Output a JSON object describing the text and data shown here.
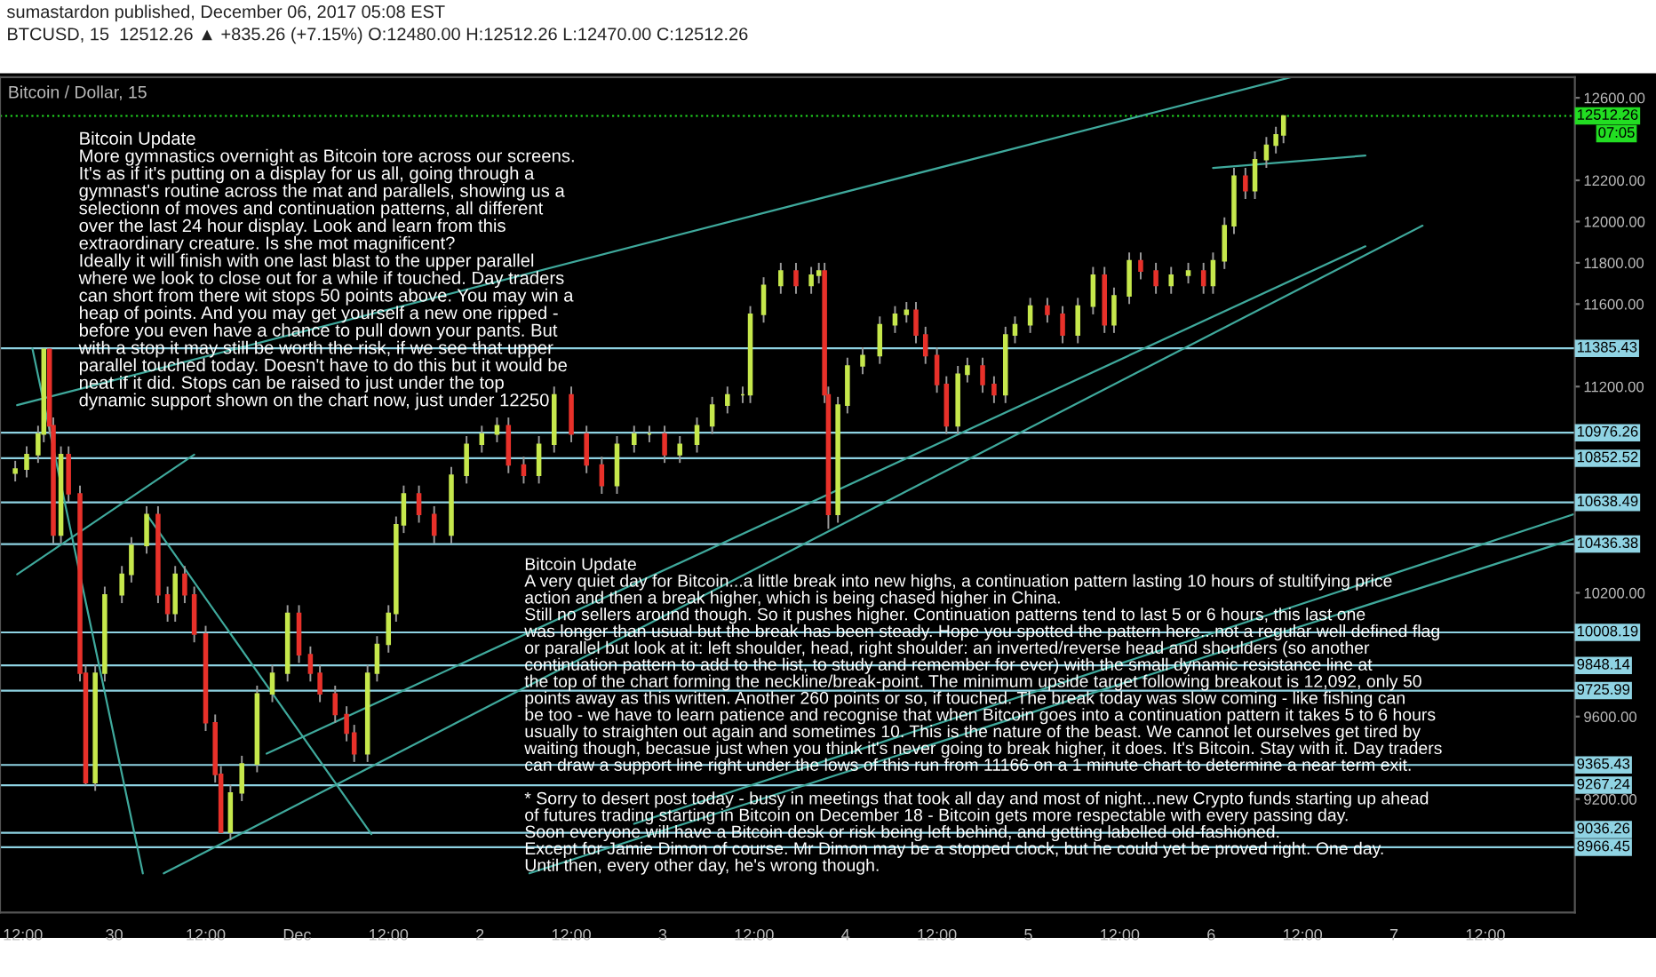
{
  "chart_data": {
    "type": "candlestick",
    "title": "Bitcoin / Dollar, 15",
    "subtitle": "sumastardon published, December 06, 2017 05:08 EST\nBTCUSD, 15  12512.26 ▲ +835.26 (+7.15%) O:12480.00 H:12512.26 L:12470.00 C:12512.26",
    "x": [
      "2017-11-29T11:00",
      "2017-11-29T12:30",
      "2017-11-29T14:00",
      "2017-11-29T14:45",
      "2017-11-29T15:30",
      "2017-11-29T16:00",
      "2017-11-29T17:00",
      "2017-11-29T18:00",
      "2017-11-29T19:30",
      "2017-11-29T20:15",
      "2017-11-29T21:30",
      "2017-11-29T22:45",
      "2017-11-30T01:00",
      "2017-11-30T02:15",
      "2017-11-30T04:15",
      "2017-11-30T05:45",
      "2017-11-30T07:00",
      "2017-11-30T08:00",
      "2017-11-30T09:15",
      "2017-11-30T10:30",
      "2017-11-30T12:00",
      "2017-11-30T13:15",
      "2017-11-30T14:00",
      "2017-11-30T15:15",
      "2017-11-30T16:45",
      "2017-11-30T18:45",
      "2017-11-30T20:45",
      "2017-11-30T22:45",
      "2017-12-01T00:15",
      "2017-12-01T01:45",
      "2017-12-01T03:00",
      "2017-12-01T05:00",
      "2017-12-01T06:30",
      "2017-12-01T07:30",
      "2017-12-01T09:15",
      "2017-12-01T10:30",
      "2017-12-01T12:00",
      "2017-12-01T13:00",
      "2017-12-01T14:00",
      "2017-12-01T16:00",
      "2017-12-01T18:00",
      "2017-12-01T20:15",
      "2017-12-01T22:15",
      "2017-12-02T00:15",
      "2017-12-02T02:15",
      "2017-12-02T03:45",
      "2017-12-02T05:45",
      "2017-12-02T07:45",
      "2017-12-02T09:45",
      "2017-12-02T12:00",
      "2017-12-02T14:00",
      "2017-12-02T16:00",
      "2017-12-02T18:00",
      "2017-12-02T20:15",
      "2017-12-02T22:15",
      "2017-12-03T00:15",
      "2017-12-03T02:15",
      "2017-12-03T04:30",
      "2017-12-03T06:30",
      "2017-12-03T08:30",
      "2017-12-03T10:30",
      "2017-12-03T11:30",
      "2017-12-03T13:15",
      "2017-12-03T15:30",
      "2017-12-03T17:30",
      "2017-12-03T19:30",
      "2017-12-03T20:30",
      "2017-12-03T21:15",
      "2017-12-03T21:45",
      "2017-12-03T23:00",
      "2017-12-04T00:15",
      "2017-12-04T02:15",
      "2017-12-04T04:30",
      "2017-12-04T06:30",
      "2017-12-04T08:00",
      "2017-12-04T09:15",
      "2017-12-04T10:30",
      "2017-12-04T12:00",
      "2017-12-04T13:15",
      "2017-12-04T14:45",
      "2017-12-04T16:00",
      "2017-12-04T18:00",
      "2017-12-04T19:30",
      "2017-12-04T21:00",
      "2017-12-04T22:15",
      "2017-12-05T00:15",
      "2017-12-05T02:30",
      "2017-12-05T04:30",
      "2017-12-05T06:30",
      "2017-12-05T08:30",
      "2017-12-05T10:00",
      "2017-12-05T11:15",
      "2017-12-05T13:15",
      "2017-12-05T14:45",
      "2017-12-05T16:45",
      "2017-12-05T18:45",
      "2017-12-05T21:00",
      "2017-12-05T23:00",
      "2017-12-06T00:15",
      "2017-12-06T01:45",
      "2017-12-06T03:00",
      "2017-12-06T04:30",
      "2017-12-06T05:45",
      "2017-12-06T07:15",
      "2017-12-06T08:30",
      "2017-12-06T09:30"
    ],
    "ohlc": [
      [
        10780,
        10840,
        10740,
        10800
      ],
      [
        10800,
        10910,
        10760,
        10870
      ],
      [
        10870,
        11010,
        10830,
        10970
      ],
      [
        10970,
        11385,
        10930,
        11380
      ],
      [
        11380,
        11385,
        10970,
        11010
      ],
      [
        11010,
        11050,
        10440,
        10480
      ],
      [
        10480,
        10910,
        10440,
        10870
      ],
      [
        10870,
        10910,
        10640,
        10680
      ],
      [
        10680,
        10720,
        9770,
        9810
      ],
      [
        9810,
        9850,
        9267,
        9280
      ],
      [
        9280,
        9850,
        9240,
        9810
      ],
      [
        9810,
        10230,
        9770,
        10190
      ],
      [
        10190,
        10330,
        10150,
        10290
      ],
      [
        10290,
        10470,
        10250,
        10430
      ],
      [
        10430,
        10620,
        10390,
        10580
      ],
      [
        10580,
        10620,
        10150,
        10190
      ],
      [
        10190,
        10230,
        10060,
        10100
      ],
      [
        10100,
        10330,
        10060,
        10290
      ],
      [
        10290,
        10330,
        10150,
        10190
      ],
      [
        10190,
        10230,
        9960,
        10000
      ],
      [
        10000,
        10040,
        9530,
        9570
      ],
      [
        9570,
        9610,
        9280,
        9320
      ],
      [
        9320,
        9360,
        9036,
        9040
      ],
      [
        9040,
        9270,
        9000,
        9230
      ],
      [
        9230,
        9410,
        9190,
        9370
      ],
      [
        9370,
        9750,
        9330,
        9710
      ],
      [
        9710,
        9850,
        9670,
        9810
      ],
      [
        9810,
        10140,
        9770,
        10100
      ],
      [
        10100,
        10140,
        9860,
        9900
      ],
      [
        9900,
        9940,
        9770,
        9810
      ],
      [
        9810,
        9850,
        9670,
        9710
      ],
      [
        9710,
        9750,
        9570,
        9610
      ],
      [
        9610,
        9650,
        9480,
        9520
      ],
      [
        9520,
        9560,
        9380,
        9420
      ],
      [
        9420,
        9850,
        9380,
        9810
      ],
      [
        9810,
        9990,
        9770,
        9950
      ],
      [
        9950,
        10140,
        9910,
        10100
      ],
      [
        10100,
        10570,
        10060,
        10530
      ],
      [
        10530,
        10720,
        10490,
        10680
      ],
      [
        10680,
        10720,
        10540,
        10580
      ],
      [
        10580,
        10620,
        10440,
        10480
      ],
      [
        10480,
        10810,
        10440,
        10770
      ],
      [
        10770,
        10960,
        10730,
        10920
      ],
      [
        10920,
        11010,
        10880,
        10970
      ],
      [
        10970,
        11050,
        10930,
        11010
      ],
      [
        11010,
        11050,
        10780,
        10820
      ],
      [
        10820,
        10860,
        10730,
        10770
      ],
      [
        10770,
        10960,
        10730,
        10920
      ],
      [
        10920,
        11200,
        10880,
        11160
      ],
      [
        11160,
        11200,
        10930,
        10970
      ],
      [
        10970,
        11010,
        10780,
        10820
      ],
      [
        10820,
        10860,
        10680,
        10720
      ],
      [
        10720,
        10960,
        10680,
        10920
      ],
      [
        10920,
        11010,
        10880,
        10970
      ],
      [
        10970,
        11010,
        10930,
        10970
      ],
      [
        10970,
        11010,
        10830,
        10870
      ],
      [
        10870,
        10960,
        10830,
        10920
      ],
      [
        10920,
        11050,
        10880,
        11010
      ],
      [
        11010,
        11150,
        10970,
        11110
      ],
      [
        11110,
        11200,
        11070,
        11160
      ],
      [
        11160,
        11200,
        11120,
        11160
      ],
      [
        11160,
        11590,
        11120,
        11550
      ],
      [
        11550,
        11730,
        11510,
        11690
      ],
      [
        11690,
        11800,
        11650,
        11760
      ],
      [
        11760,
        11800,
        11650,
        11690
      ],
      [
        11690,
        11780,
        11650,
        11740
      ],
      [
        11740,
        11800,
        11700,
        11760
      ],
      [
        11760,
        11800,
        11120,
        11160
      ],
      [
        11160,
        11200,
        10510,
        10580
      ],
      [
        10580,
        11150,
        10540,
        11110
      ],
      [
        11110,
        11340,
        11070,
        11300
      ],
      [
        11300,
        11390,
        11260,
        11350
      ],
      [
        11350,
        11540,
        11310,
        11500
      ],
      [
        11500,
        11590,
        11460,
        11550
      ],
      [
        11550,
        11610,
        11510,
        11570
      ],
      [
        11570,
        11610,
        11410,
        11450
      ],
      [
        11450,
        11490,
        11310,
        11350
      ],
      [
        11350,
        11390,
        11170,
        11210
      ],
      [
        11210,
        11250,
        10970,
        11010
      ],
      [
        11010,
        11300,
        10970,
        11260
      ],
      [
        11260,
        11340,
        11220,
        11300
      ],
      [
        11300,
        11340,
        11170,
        11210
      ],
      [
        11210,
        11250,
        11120,
        11160
      ],
      [
        11160,
        11490,
        11120,
        11450
      ],
      [
        11450,
        11540,
        11410,
        11500
      ],
      [
        11500,
        11630,
        11460,
        11590
      ],
      [
        11590,
        11630,
        11510,
        11550
      ],
      [
        11550,
        11590,
        11410,
        11450
      ],
      [
        11450,
        11630,
        11410,
        11590
      ],
      [
        11590,
        11780,
        11550,
        11740
      ],
      [
        11740,
        11780,
        11460,
        11500
      ],
      [
        11500,
        11680,
        11460,
        11640
      ],
      [
        11640,
        11850,
        11600,
        11810
      ],
      [
        11810,
        11850,
        11720,
        11760
      ],
      [
        11760,
        11800,
        11650,
        11690
      ],
      [
        11690,
        11780,
        11650,
        11740
      ],
      [
        11740,
        11800,
        11700,
        11760
      ],
      [
        11760,
        11800,
        11650,
        11690
      ],
      [
        11690,
        11850,
        11650,
        11810
      ],
      [
        11810,
        12020,
        11770,
        11980
      ],
      [
        11980,
        12260,
        11940,
        12220
      ],
      [
        12220,
        12260,
        12110,
        12150
      ],
      [
        12150,
        12340,
        12110,
        12300
      ],
      [
        12300,
        12410,
        12260,
        12370
      ],
      [
        12370,
        12460,
        12330,
        12420
      ],
      [
        12420,
        12512.26,
        12380,
        12512.26
      ]
    ],
    "xlim": [
      "2017-11-29T09:00",
      "2017-12-07T23:45"
    ],
    "ylim": [
      8650,
      12700
    ],
    "xticks": [
      {
        "value": "2017-11-29T12:00",
        "label": "12:00"
      },
      {
        "value": "2017-11-30",
        "label": "30"
      },
      {
        "value": "2017-11-30T12:00",
        "label": "12:00"
      },
      {
        "value": "2017-12-01",
        "label": "Dec"
      },
      {
        "value": "2017-12-01T12:00",
        "label": "12:00"
      },
      {
        "value": "2017-12-02",
        "label": "2"
      },
      {
        "value": "2017-12-02T12:00",
        "label": "12:00"
      },
      {
        "value": "2017-12-03",
        "label": "3"
      },
      {
        "value": "2017-12-03T12:00",
        "label": "12:00"
      },
      {
        "value": "2017-12-04",
        "label": "4"
      },
      {
        "value": "2017-12-04T12:00",
        "label": "12:00"
      },
      {
        "value": "2017-12-05",
        "label": "5"
      },
      {
        "value": "2017-12-05T12:00",
        "label": "12:00"
      },
      {
        "value": "2017-12-06",
        "label": "6"
      },
      {
        "value": "2017-12-06T12:00",
        "label": "12:00"
      },
      {
        "value": "2017-12-07",
        "label": "7"
      },
      {
        "value": "2017-12-07T12:00",
        "label": "12:00"
      }
    ],
    "yticks": [
      {
        "value": 12600,
        "label": "12600.00"
      },
      {
        "value": 12200,
        "label": "12200.00"
      },
      {
        "value": 12000,
        "label": "12000.00"
      },
      {
        "value": 11800,
        "label": "11800.00"
      },
      {
        "value": 11600,
        "label": "11600.00"
      },
      {
        "value": 11200,
        "label": "11200.00"
      },
      {
        "value": 10200,
        "label": "10200.00"
      },
      {
        "value": 9600,
        "label": "9600.00"
      },
      {
        "value": 9200,
        "label": "9200.00"
      }
    ],
    "series": [
      {
        "type": "line",
        "color": "#3fa99c",
        "x": [
          "2017-11-29T11:15",
          "2017-12-06T10:30"
        ],
        "values": [
          11110,
          12700
        ]
      },
      {
        "type": "line",
        "color": "#3fa99c",
        "x": [
          "2017-11-30T06:30",
          "2017-12-07T03:45"
        ],
        "values": [
          8840,
          11980
        ]
      },
      {
        "type": "line",
        "color": "#3fa99c",
        "x": [
          "2017-11-30T20:00",
          "2017-12-06T20:15"
        ],
        "values": [
          9420,
          11880
        ]
      },
      {
        "type": "line",
        "color": "#3fa99c",
        "x": [
          "2017-12-02T20:15",
          "2017-12-07T23:30"
        ],
        "values": [
          9080,
          10580
        ]
      },
      {
        "type": "line",
        "color": "#3fa99c",
        "x": [
          "2017-12-02T06:30",
          "2017-12-07T23:30"
        ],
        "values": [
          8840,
          10460
        ]
      },
      {
        "type": "line",
        "color": "#3fa99c",
        "x": [
          "2017-12-06T00:15",
          "2017-12-06T20:15"
        ],
        "values": [
          12260,
          12320
        ]
      },
      {
        "type": "line",
        "color": "#3fa99c",
        "x": [
          "2017-11-29T13:15",
          "2017-11-30T03:45"
        ],
        "values": [
          11385,
          8840
        ]
      },
      {
        "type": "line",
        "color": "#3fa99c",
        "x": [
          "2017-11-30T04:15",
          "2017-12-01T09:45"
        ],
        "values": [
          10580,
          9030
        ]
      },
      {
        "type": "line",
        "color": "#3fa99c",
        "x": [
          "2017-11-29T11:15",
          "2017-11-30T10:30"
        ],
        "values": [
          10290,
          10870
        ]
      }
    ],
    "ref_lines": [
      {
        "axis": "y",
        "value": 11385.43,
        "label": "11385.43",
        "color": "#8fd3e3"
      },
      {
        "axis": "y",
        "value": 10976.26,
        "label": "10976.26",
        "color": "#8fd3e3"
      },
      {
        "axis": "y",
        "value": 10852.52,
        "label": "10852.52",
        "color": "#8fd3e3"
      },
      {
        "axis": "y",
        "value": 10638.49,
        "label": "10638.49",
        "color": "#8fd3e3"
      },
      {
        "axis": "y",
        "value": 10436.38,
        "label": "10436.38",
        "color": "#8fd3e3"
      },
      {
        "axis": "y",
        "value": 10008.19,
        "label": "10008.19",
        "color": "#8fd3e3"
      },
      {
        "axis": "y",
        "value": 9848.14,
        "label": "9848.14",
        "color": "#8fd3e3"
      },
      {
        "axis": "y",
        "value": 9725.99,
        "label": "9725.99",
        "color": "#8fd3e3"
      },
      {
        "axis": "y",
        "value": 9365.43,
        "label": "9365.43",
        "color": "#8fd3e3"
      },
      {
        "axis": "y",
        "value": 9267.24,
        "label": "9267.24",
        "color": "#8fd3e3"
      },
      {
        "axis": "y",
        "value": 9036.26,
        "label": "9036.26",
        "color": "#8fd3e3"
      },
      {
        "axis": "y",
        "value": 8966.45,
        "label": "8966.45",
        "color": "#8fd3e3"
      },
      {
        "axis": "y",
        "value": 12512.26,
        "label": "12512.26",
        "color": "#22dd22",
        "line_style": "dotted"
      }
    ],
    "annotations": [
      "Bitcoin Update\nMore gymnastics overnight as Bitcoin tore across our screens.\nIt's as if it's putting on a display for us all, going through a\ngymnast's routine across the mat and parallels, showing us a\nselectionn of moves and continuation patterns, all different\nover the last 24 hour display. Look and learn from this\nextraordinary creature. Is she mot magnificent?\nIdeally it will finish with one last blast to the upper parallel\nwhere we look to close out for a while if touched. Day traders\ncan short from there wit stops 50 points above. You may win a\nheap of points. And you may get yourself a new one ripped -\nbefore you even have a chance to pull down your pants. But\nwith a stop it may still be worth the risk, if we see that upper\nparallel touched today. Doesn't have to do this but it would be\nneat if it did. Stops can be raised to just under the top\ndynamic support shown on the chart now, just under 12250",
      "Bitcoin Update\nA very quiet day for Bitcoin...a little break into new highs, a continuation pattern lasting 10 hours of stultifying price\naction and then a break higher, which is being chased higher in China.\nStill no sellers around though. So it pushes higher. Continuation patterns tend to last 5 or 6 hours, this last one\nwas longer than usual but the break has been steady. Hope you spotted the pattern here...not a regular well defined flag\nor parallel but look at it: left shoulder, head, right shoulder: an inverted/reverse head and shoulders (so another\ncontinuation pattern to add to the list, to study and remember for ever) with the small dynamic resistance line at\nthe top of the chart forming the neckline/break-point. The minimum upside target following breakout is 12,092, only 50\npoints away as this written. Another 260 points or so, if touched. The break today was slow coming - like fishing can\nbe too - we have to learn patience and recognise that when Bitcoin goes into a continuation pattern it takes 5 to 6 hours\nusually to straighten out again and sometimes 10. This is the nature of the beast. We cannot let ourselves get tired by\nwaiting though, becasue just when you think it's never going to break higher, it does. It's Bitcoin. Stay with it. Day traders\ncan draw a support line right under the lows of this run from 11166 on a 1 minute chart to determine a near term exit.\n\n* Sorry to desert post today - busy in meetings that took all day and most of night...new Crypto funds starting up ahead\nof futures trading starting in Bitcoin on December 18 - Bitcoin gets more respectable with every passing day.\nSoon everyone will have a Bitcoin desk or risk being left behind, and getting labelled old-fashioned.\nExcept for Jamie Dimon of course. Mr Dimon may be a stopped clock, but he could yet be proved right. One day.\nUntil then, every other day, he's wrong though.",
      "07:05"
    ],
    "grid": false
  }
}
